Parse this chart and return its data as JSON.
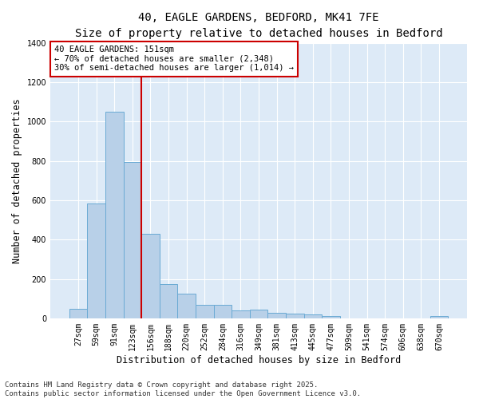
{
  "title_line1": "40, EAGLE GARDENS, BEDFORD, MK41 7FE",
  "title_line2": "Size of property relative to detached houses in Bedford",
  "xlabel": "Distribution of detached houses by size in Bedford",
  "ylabel": "Number of detached properties",
  "categories": [
    "27sqm",
    "59sqm",
    "91sqm",
    "123sqm",
    "156sqm",
    "188sqm",
    "220sqm",
    "252sqm",
    "284sqm",
    "316sqm",
    "349sqm",
    "381sqm",
    "413sqm",
    "445sqm",
    "477sqm",
    "509sqm",
    "541sqm",
    "574sqm",
    "606sqm",
    "638sqm",
    "670sqm"
  ],
  "values": [
    47,
    585,
    1050,
    795,
    430,
    175,
    125,
    68,
    68,
    40,
    42,
    27,
    25,
    18,
    10,
    0,
    0,
    0,
    0,
    0,
    10
  ],
  "bar_color": "#b8d0e8",
  "bar_edge_color": "#6aaad4",
  "vline_x_index": 3.5,
  "vline_color": "#cc0000",
  "annotation_text": "40 EAGLE GARDENS: 151sqm\n← 70% of detached houses are smaller (2,348)\n30% of semi-detached houses are larger (1,014) →",
  "annotation_box_color": "#cc0000",
  "ylim": [
    0,
    1400
  ],
  "yticks": [
    0,
    200,
    400,
    600,
    800,
    1000,
    1200,
    1400
  ],
  "plot_bg_color": "#ddeaf7",
  "footer_text": "Contains HM Land Registry data © Crown copyright and database right 2025.\nContains public sector information licensed under the Open Government Licence v3.0.",
  "title_fontsize": 10,
  "subtitle_fontsize": 9,
  "axis_label_fontsize": 8.5,
  "tick_fontsize": 7,
  "annotation_fontsize": 7.5,
  "footer_fontsize": 6.5
}
